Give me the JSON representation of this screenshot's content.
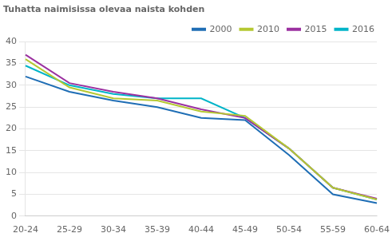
{
  "chart_data": {
    "type": "line",
    "title": "Tuhatta naimisissa olevaa naista kohden",
    "categories": [
      "20-24",
      "25-29",
      "30-34",
      "35-39",
      "40-44",
      "45-49",
      "50-54",
      "55-59",
      "60-64"
    ],
    "series": [
      {
        "name": "2000",
        "color": "#1f6eb5",
        "values": [
          32,
          28.5,
          26.5,
          25,
          22.5,
          22,
          14,
          5,
          3.0
        ]
      },
      {
        "name": "2010",
        "color": "#b5c832",
        "values": [
          36,
          29.5,
          27,
          26.5,
          24,
          23,
          15.5,
          6.5,
          3.8
        ]
      },
      {
        "name": "2015",
        "color": "#9b30a0",
        "values": [
          37,
          30.5,
          28.5,
          27,
          24.5,
          22.5,
          15.5,
          6.5,
          4.0
        ]
      },
      {
        "name": "2016",
        "color": "#00b4c8",
        "values": [
          34.5,
          30,
          28,
          27,
          27,
          22.5,
          15.5,
          6.5,
          3.8
        ]
      }
    ],
    "ylim": [
      0,
      40
    ],
    "yticks": [
      0,
      5,
      10,
      15,
      20,
      25,
      30,
      35,
      40
    ],
    "grid": true,
    "legend": "upper right"
  }
}
